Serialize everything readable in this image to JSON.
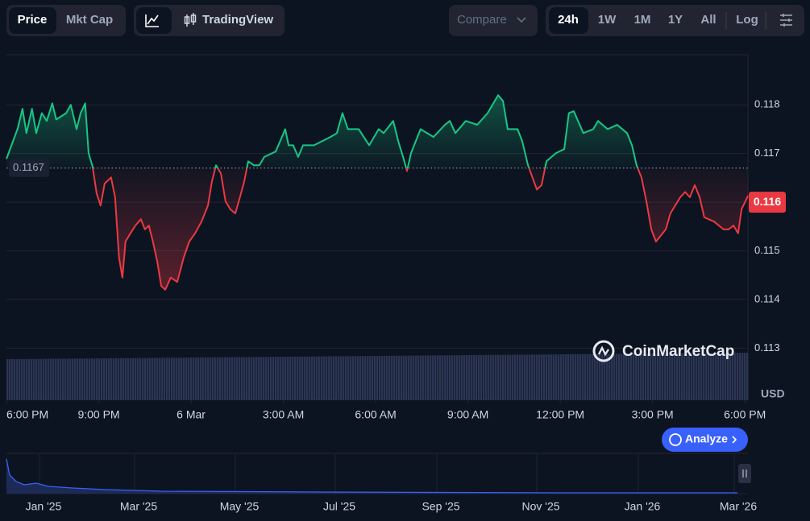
{
  "toolbar": {
    "metric_tabs": [
      "Price",
      "Mkt Cap"
    ],
    "chart_style": "TradingView",
    "compare": "Compare",
    "ranges": [
      "24h",
      "1W",
      "1M",
      "1Y",
      "All"
    ],
    "scale": "Log"
  },
  "chart_data": {
    "type": "line",
    "x": [
      0.0,
      0.36,
      0.52,
      0.65,
      0.83,
      0.97,
      1.15,
      1.31,
      1.49,
      1.62,
      1.94,
      2.09,
      2.28,
      2.41,
      2.56,
      2.67,
      2.8,
      2.93,
      3.06,
      3.19,
      3.4,
      3.53,
      3.66,
      3.77,
      3.87,
      4.03,
      4.19,
      4.37,
      4.5,
      4.63,
      4.76,
      4.9,
      5.03,
      5.16,
      5.34,
      5.55,
      5.76,
      5.94,
      6.13,
      6.34,
      6.55,
      6.68,
      6.81,
      6.97,
      7.12,
      7.28,
      7.44,
      7.59,
      7.73,
      7.86,
      8.04,
      8.22,
      8.38,
      8.75,
      8.9,
      9.06,
      9.17,
      9.32,
      9.48,
      9.64,
      10.0,
      10.53,
      10.74,
      10.92,
      11.1,
      11.45,
      11.79,
      12.1,
      12.26,
      12.57,
      12.73,
      12.89,
      13.02,
      13.15,
      13.46,
      13.88,
      14.25,
      14.41,
      14.59,
      14.93,
      15.3,
      15.64,
      15.98,
      16.14,
      16.29,
      16.61,
      16.76,
      16.95,
      17.24,
      17.39,
      17.55,
      17.86,
      18.13,
      18.28,
      18.44,
      18.75,
      19.07,
      19.23,
      19.54,
      19.85,
      20.17,
      20.33,
      20.48,
      20.64,
      20.8,
      20.96,
      21.11,
      21.43,
      21.58,
      21.9,
      22.06,
      22.21,
      22.37,
      22.53,
      22.68,
      23.0,
      23.31,
      23.47,
      23.63,
      23.78,
      23.89,
      24.1
    ],
    "values": [
      0.11689,
      0.1175,
      0.11792,
      0.11742,
      0.11792,
      0.11742,
      0.11783,
      0.11767,
      0.11803,
      0.1177,
      0.11783,
      0.118,
      0.1175,
      0.11783,
      0.11803,
      0.11701,
      0.11673,
      0.11618,
      0.11593,
      0.11638,
      0.11651,
      0.1161,
      0.11486,
      0.11445,
      0.11519,
      0.11536,
      0.11552,
      0.11565,
      0.11544,
      0.11552,
      0.11519,
      0.11478,
      0.11428,
      0.1142,
      0.11445,
      0.11436,
      0.11486,
      0.11519,
      0.11536,
      0.1156,
      0.11593,
      0.11643,
      0.11676,
      0.11659,
      0.11602,
      0.11585,
      0.11577,
      0.1161,
      0.11643,
      0.11684,
      0.11676,
      0.11676,
      0.11693,
      0.11704,
      0.11726,
      0.1175,
      0.11717,
      0.11717,
      0.11693,
      0.11717,
      0.11717,
      0.11734,
      0.11742,
      0.11783,
      0.1175,
      0.1175,
      0.11717,
      0.1175,
      0.11742,
      0.11767,
      0.11726,
      0.11693,
      0.11664,
      0.11701,
      0.1175,
      0.11734,
      0.11759,
      0.11767,
      0.11742,
      0.11767,
      0.11759,
      0.11783,
      0.1182,
      0.11808,
      0.1175,
      0.1175,
      0.11726,
      0.11676,
      0.11626,
      0.11635,
      0.11684,
      0.11701,
      0.11709,
      0.11783,
      0.11787,
      0.11742,
      0.1175,
      0.11767,
      0.1175,
      0.11759,
      0.11742,
      0.11717,
      0.11676,
      0.11651,
      0.11602,
      0.11544,
      0.11519,
      0.11544,
      0.11577,
      0.1161,
      0.11621,
      0.1161,
      0.11635,
      0.1161,
      0.11569,
      0.1156,
      0.11544,
      0.11544,
      0.11552,
      0.11536,
      0.11585,
      0.11613
    ],
    "up_color": "#16c784",
    "down_color": "#ea3943",
    "reference_value": 0.1167,
    "last_price": 0.116,
    "y_unit": "USD",
    "xlim": [
      0,
      24.1
    ],
    "xticks": [
      {
        "value": 0,
        "label": "6:00 PM"
      },
      {
        "value": 3,
        "label": "9:00 PM"
      },
      {
        "value": 6,
        "label": "6 Mar"
      },
      {
        "value": 9,
        "label": "3:00 AM"
      },
      {
        "value": 12,
        "label": "6:00 AM"
      },
      {
        "value": 15,
        "label": "9:00 AM"
      },
      {
        "value": 18,
        "label": "12:00 PM"
      },
      {
        "value": 21,
        "label": "3:00 PM"
      },
      {
        "value": 24,
        "label": "6:00 PM"
      }
    ],
    "ylim": [
      0.11193,
      0.11903
    ],
    "yticks": [
      0.113,
      0.114,
      0.115,
      0.116,
      0.117,
      0.118
    ],
    "grid": true
  },
  "watermark": "CoinMarketCap",
  "analyze": "Analyze",
  "navigator": {
    "ticks": [
      "Jan '25",
      "Mar '25",
      "May '25",
      "Jul '25",
      "Sep '25",
      "Nov '25",
      "Jan '26",
      "Mar '26"
    ]
  }
}
